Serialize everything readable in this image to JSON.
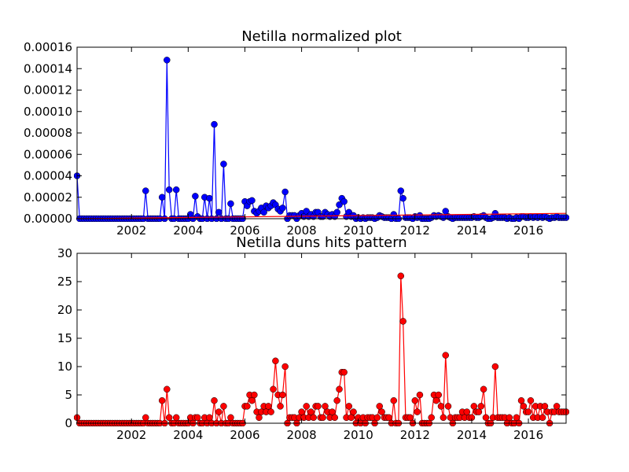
{
  "chart_data": [
    {
      "type": "line",
      "title": "Netilla normalized plot",
      "x": [
        2000.08,
        2000.17,
        2000.25,
        2000.33,
        2000.42,
        2000.5,
        2000.58,
        2000.67,
        2000.75,
        2000.83,
        2000.92,
        2001,
        2001.08,
        2001.17,
        2001.25,
        2001.33,
        2001.42,
        2001.5,
        2001.58,
        2001.67,
        2001.75,
        2001.83,
        2001.92,
        2002,
        2002.08,
        2002.17,
        2002.25,
        2002.33,
        2002.42,
        2002.5,
        2002.58,
        2002.67,
        2002.75,
        2002.83,
        2002.92,
        2003,
        2003.08,
        2003.17,
        2003.25,
        2003.33,
        2003.42,
        2003.5,
        2003.58,
        2003.67,
        2003.75,
        2003.83,
        2003.92,
        2004,
        2004.08,
        2004.17,
        2004.25,
        2004.33,
        2004.42,
        2004.5,
        2004.58,
        2004.67,
        2004.75,
        2004.83,
        2004.92,
        2005,
        2005.08,
        2005.17,
        2005.25,
        2005.33,
        2005.42,
        2005.5,
        2005.58,
        2005.67,
        2005.75,
        2005.83,
        2005.92,
        2006,
        2006.08,
        2006.17,
        2006.25,
        2006.33,
        2006.42,
        2006.5,
        2006.58,
        2006.67,
        2006.75,
        2006.83,
        2006.92,
        2007,
        2007.08,
        2007.17,
        2007.25,
        2007.33,
        2007.42,
        2007.5,
        2007.58,
        2007.67,
        2007.75,
        2007.83,
        2007.92,
        2008,
        2008.08,
        2008.17,
        2008.25,
        2008.33,
        2008.42,
        2008.5,
        2008.58,
        2008.67,
        2008.75,
        2008.83,
        2008.92,
        2009,
        2009.08,
        2009.17,
        2009.25,
        2009.33,
        2009.42,
        2009.5,
        2009.58,
        2009.67,
        2009.75,
        2009.83,
        2009.92,
        2010,
        2010.08,
        2010.17,
        2010.25,
        2010.33,
        2010.42,
        2010.5,
        2010.58,
        2010.67,
        2010.75,
        2010.83,
        2010.92,
        2011,
        2011.08,
        2011.17,
        2011.25,
        2011.33,
        2011.42,
        2011.5,
        2011.58,
        2011.67,
        2011.75,
        2011.83,
        2011.92,
        2012,
        2012.08,
        2012.17,
        2012.25,
        2012.33,
        2012.42,
        2012.5,
        2012.58,
        2012.67,
        2012.75,
        2012.83,
        2012.92,
        2013,
        2013.08,
        2013.17,
        2013.25,
        2013.33,
        2013.42,
        2013.5,
        2013.58,
        2013.67,
        2013.75,
        2013.83,
        2013.92,
        2014,
        2014.08,
        2014.17,
        2014.25,
        2014.33,
        2014.42,
        2014.5,
        2014.58,
        2014.67,
        2014.75,
        2014.83,
        2014.92,
        2015,
        2015.08,
        2015.17,
        2015.25,
        2015.33,
        2015.42,
        2015.5,
        2015.58,
        2015.67,
        2015.75,
        2015.83,
        2015.92,
        2016,
        2016.08,
        2016.17,
        2016.25,
        2016.33,
        2016.42,
        2016.5,
        2016.58,
        2016.67,
        2016.75,
        2016.83,
        2016.92,
        2017,
        2017.08,
        2017.17,
        2017.25,
        2017.33
      ],
      "series": [
        {
          "color": "#0000ff",
          "marker": true,
          "values": [
            4e-05,
            0,
            0,
            0,
            0,
            0,
            0,
            0,
            0,
            0,
            0,
            0,
            0,
            0,
            0,
            0,
            0,
            0,
            0,
            0,
            0,
            0,
            0,
            0,
            0,
            0,
            0,
            0,
            0,
            2.6e-05,
            0,
            0,
            0,
            0,
            0,
            0,
            2e-05,
            0,
            0.000148,
            2.7e-05,
            0,
            0,
            2.7e-05,
            0,
            0,
            0,
            0,
            0,
            4e-06,
            0,
            2.1e-05,
            2e-06,
            0,
            0,
            2e-05,
            0,
            1.9e-05,
            0,
            8.8e-05,
            0,
            6e-06,
            0,
            5.1e-05,
            0,
            0,
            1.4e-05,
            0,
            0,
            0,
            0,
            0,
            1.6e-05,
            1.2e-05,
            1.6e-05,
            1.7e-05,
            7e-06,
            5e-06,
            7e-06,
            1e-05,
            6e-06,
            1.2e-05,
            1e-05,
            1.2e-05,
            1.5e-05,
            1.3e-05,
            9e-06,
            7e-06,
            1e-05,
            2.5e-05,
            0,
            3e-06,
            3e-06,
            3e-06,
            0,
            3e-06,
            5e-06,
            2e-06,
            7e-06,
            2e-06,
            4e-06,
            2e-06,
            6e-06,
            6e-06,
            2e-06,
            2e-06,
            6e-06,
            4e-06,
            2e-06,
            4e-06,
            2e-06,
            6e-06,
            1.3e-05,
            1.9e-05,
            1.6e-05,
            2e-06,
            6e-06,
            2e-06,
            3e-06,
            0,
            1e-06,
            0,
            1e-06,
            0,
            1e-06,
            1e-06,
            1e-06,
            0,
            1e-06,
            3e-06,
            2e-06,
            1e-06,
            1e-06,
            1e-06,
            0,
            4e-06,
            0,
            0,
            2.6e-05,
            1.9e-05,
            1e-06,
            1e-06,
            1e-06,
            0,
            2e-06,
            1e-06,
            3e-06,
            0,
            0,
            0,
            0,
            1e-06,
            3e-06,
            2e-06,
            3e-06,
            2e-06,
            1e-06,
            7e-06,
            2e-06,
            1e-06,
            0,
            1e-06,
            1e-06,
            1e-06,
            1e-06,
            1e-06,
            1e-06,
            1e-06,
            1e-06,
            2e-06,
            1e-06,
            1e-06,
            2e-06,
            3e-06,
            1e-06,
            0,
            0,
            1e-06,
            5e-06,
            1e-06,
            1e-06,
            1e-06,
            1e-06,
            0,
            1e-06,
            0,
            0,
            1e-06,
            0,
            2e-06,
            2e-06,
            1e-06,
            1e-06,
            2e-06,
            1e-06,
            2e-06,
            1e-06,
            2e-06,
            1e-06,
            2e-06,
            1e-06,
            0,
            1e-06,
            1e-06,
            2e-06,
            1e-06,
            1e-06,
            1e-06,
            1e-06
          ]
        },
        {
          "color": "#ff0000",
          "x": [
            2000.08,
            2017.33
          ],
          "values": [
            0,
            5e-06
          ]
        }
      ],
      "xlim": [
        2000.08,
        2017.33
      ],
      "ylim": [
        0,
        0.00016
      ],
      "xticks": [
        2002,
        2004,
        2006,
        2008,
        2010,
        2012,
        2014,
        2016
      ],
      "yticks": [
        {
          "value": 0,
          "label": "0.00000"
        },
        {
          "value": 2e-05,
          "label": "0.00002"
        },
        {
          "value": 4e-05,
          "label": "0.00004"
        },
        {
          "value": 6e-05,
          "label": "0.00006"
        },
        {
          "value": 8e-05,
          "label": "0.00008"
        },
        {
          "value": 0.0001,
          "label": "0.00010"
        },
        {
          "value": 0.00012,
          "label": "0.00012"
        },
        {
          "value": 0.00014,
          "label": "0.00014"
        },
        {
          "value": 0.00016,
          "label": "0.00016"
        }
      ]
    },
    {
      "type": "line",
      "title": "Netilla duns hits pattern",
      "x": [
        2000.08,
        2000.17,
        2000.25,
        2000.33,
        2000.42,
        2000.5,
        2000.58,
        2000.67,
        2000.75,
        2000.83,
        2000.92,
        2001,
        2001.08,
        2001.17,
        2001.25,
        2001.33,
        2001.42,
        2001.5,
        2001.58,
        2001.67,
        2001.75,
        2001.83,
        2001.92,
        2002,
        2002.08,
        2002.17,
        2002.25,
        2002.33,
        2002.42,
        2002.5,
        2002.58,
        2002.67,
        2002.75,
        2002.83,
        2002.92,
        2003,
        2003.08,
        2003.17,
        2003.25,
        2003.33,
        2003.42,
        2003.5,
        2003.58,
        2003.67,
        2003.75,
        2003.83,
        2003.92,
        2004,
        2004.08,
        2004.17,
        2004.25,
        2004.33,
        2004.42,
        2004.5,
        2004.58,
        2004.67,
        2004.75,
        2004.83,
        2004.92,
        2005,
        2005.08,
        2005.17,
        2005.25,
        2005.33,
        2005.42,
        2005.5,
        2005.58,
        2005.67,
        2005.75,
        2005.83,
        2005.92,
        2006,
        2006.08,
        2006.17,
        2006.25,
        2006.33,
        2006.42,
        2006.5,
        2006.58,
        2006.67,
        2006.75,
        2006.83,
        2006.92,
        2007,
        2007.08,
        2007.17,
        2007.25,
        2007.33,
        2007.42,
        2007.5,
        2007.58,
        2007.67,
        2007.75,
        2007.83,
        2007.92,
        2008,
        2008.08,
        2008.17,
        2008.25,
        2008.33,
        2008.42,
        2008.5,
        2008.58,
        2008.67,
        2008.75,
        2008.83,
        2008.92,
        2009,
        2009.08,
        2009.17,
        2009.25,
        2009.33,
        2009.42,
        2009.5,
        2009.58,
        2009.67,
        2009.75,
        2009.83,
        2009.92,
        2010,
        2010.08,
        2010.17,
        2010.25,
        2010.33,
        2010.42,
        2010.5,
        2010.58,
        2010.67,
        2010.75,
        2010.83,
        2010.92,
        2011,
        2011.08,
        2011.17,
        2011.25,
        2011.33,
        2011.42,
        2011.5,
        2011.58,
        2011.67,
        2011.75,
        2011.83,
        2011.92,
        2012,
        2012.08,
        2012.17,
        2012.25,
        2012.33,
        2012.42,
        2012.5,
        2012.58,
        2012.67,
        2012.75,
        2012.83,
        2012.92,
        2013,
        2013.08,
        2013.17,
        2013.25,
        2013.33,
        2013.42,
        2013.5,
        2013.58,
        2013.67,
        2013.75,
        2013.83,
        2013.92,
        2014,
        2014.08,
        2014.17,
        2014.25,
        2014.33,
        2014.42,
        2014.5,
        2014.58,
        2014.67,
        2014.75,
        2014.83,
        2014.92,
        2015,
        2015.08,
        2015.17,
        2015.25,
        2015.33,
        2015.42,
        2015.5,
        2015.58,
        2015.67,
        2015.75,
        2015.83,
        2015.92,
        2016,
        2016.08,
        2016.17,
        2016.25,
        2016.33,
        2016.42,
        2016.5,
        2016.58,
        2016.67,
        2016.75,
        2016.83,
        2016.92,
        2017,
        2017.08,
        2017.17,
        2017.25,
        2017.33
      ],
      "series": [
        {
          "color": "#ff0000",
          "marker": true,
          "values": [
            1,
            0,
            0,
            0,
            0,
            0,
            0,
            0,
            0,
            0,
            0,
            0,
            0,
            0,
            0,
            0,
            0,
            0,
            0,
            0,
            0,
            0,
            0,
            0,
            0,
            0,
            0,
            0,
            0,
            1,
            0,
            0,
            0,
            0,
            0,
            0,
            4,
            0,
            6,
            1,
            0,
            0,
            1,
            0,
            0,
            0,
            0,
            0,
            1,
            0,
            1,
            1,
            0,
            0,
            1,
            0,
            1,
            0,
            4,
            0,
            2,
            0,
            3,
            0,
            0,
            1,
            0,
            0,
            0,
            0,
            0,
            3,
            3,
            5,
            4,
            5,
            2,
            1,
            2,
            3,
            2,
            3,
            2,
            6,
            11,
            5,
            3,
            5,
            10,
            0,
            1,
            1,
            1,
            0,
            1,
            2,
            1,
            3,
            1,
            2,
            1,
            3,
            3,
            1,
            1,
            3,
            2,
            1,
            2,
            1,
            4,
            6,
            9,
            9,
            1,
            3,
            1,
            2,
            0,
            1,
            0,
            1,
            0,
            1,
            1,
            1,
            0,
            1,
            3,
            2,
            1,
            1,
            1,
            0,
            4,
            0,
            0,
            26,
            18,
            1,
            1,
            1,
            0,
            4,
            2,
            5,
            0,
            0,
            0,
            0,
            1,
            5,
            4,
            5,
            3,
            1,
            12,
            3,
            1,
            0,
            1,
            1,
            1,
            2,
            1,
            2,
            1,
            1,
            3,
            2,
            2,
            3,
            6,
            1,
            0,
            0,
            1,
            10,
            1,
            1,
            1,
            1,
            0,
            1,
            0,
            0,
            1,
            0,
            4,
            3,
            2,
            2,
            4,
            1,
            3,
            1,
            3,
            1,
            3,
            2,
            0,
            2,
            2,
            3,
            2,
            2,
            2,
            2
          ]
        }
      ],
      "xlim": [
        2000.08,
        2017.33
      ],
      "ylim": [
        0,
        30
      ],
      "xticks": [
        2002,
        2004,
        2006,
        2008,
        2010,
        2012,
        2014,
        2016
      ],
      "yticks": [
        0,
        5,
        10,
        15,
        20,
        25,
        30
      ]
    }
  ]
}
